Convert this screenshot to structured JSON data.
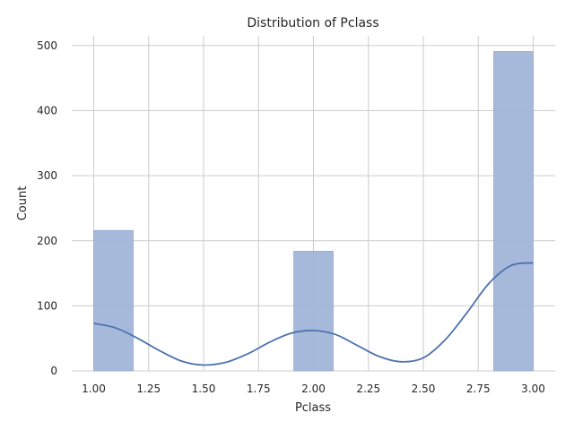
{
  "chart_data": {
    "type": "bar",
    "title": "Distribution of Pclass",
    "xlabel": "Pclass",
    "ylabel": "Count",
    "xlim": [
      0.9,
      3.1
    ],
    "ylim": [
      0,
      515
    ],
    "x_ticks": [
      "1.00",
      "1.25",
      "1.50",
      "1.75",
      "2.00",
      "2.25",
      "2.50",
      "2.75",
      "3.00"
    ],
    "y_ticks": [
      "0",
      "100",
      "200",
      "300",
      "400",
      "500"
    ],
    "grid": true,
    "bars": [
      {
        "x0": 1.0,
        "x1": 1.18,
        "value": 216
      },
      {
        "x0": 1.91,
        "x1": 2.09,
        "value": 184
      },
      {
        "x0": 2.82,
        "x1": 3.0,
        "value": 491
      }
    ],
    "kde": {
      "x": [
        1.0,
        1.1,
        1.2,
        1.3,
        1.4,
        1.5,
        1.6,
        1.7,
        1.8,
        1.9,
        2.0,
        2.1,
        2.2,
        2.3,
        2.4,
        2.5,
        2.6,
        2.7,
        2.8,
        2.9,
        3.0
      ],
      "y": [
        73,
        66,
        50,
        31,
        15,
        9,
        13,
        26,
        44,
        58,
        62,
        56,
        39,
        22,
        14,
        20,
        48,
        90,
        135,
        162,
        166
      ]
    },
    "colors": {
      "bar": "#a2b5d9",
      "bar_edge": "#8fa5cf",
      "kde": "#4c72b0"
    }
  }
}
